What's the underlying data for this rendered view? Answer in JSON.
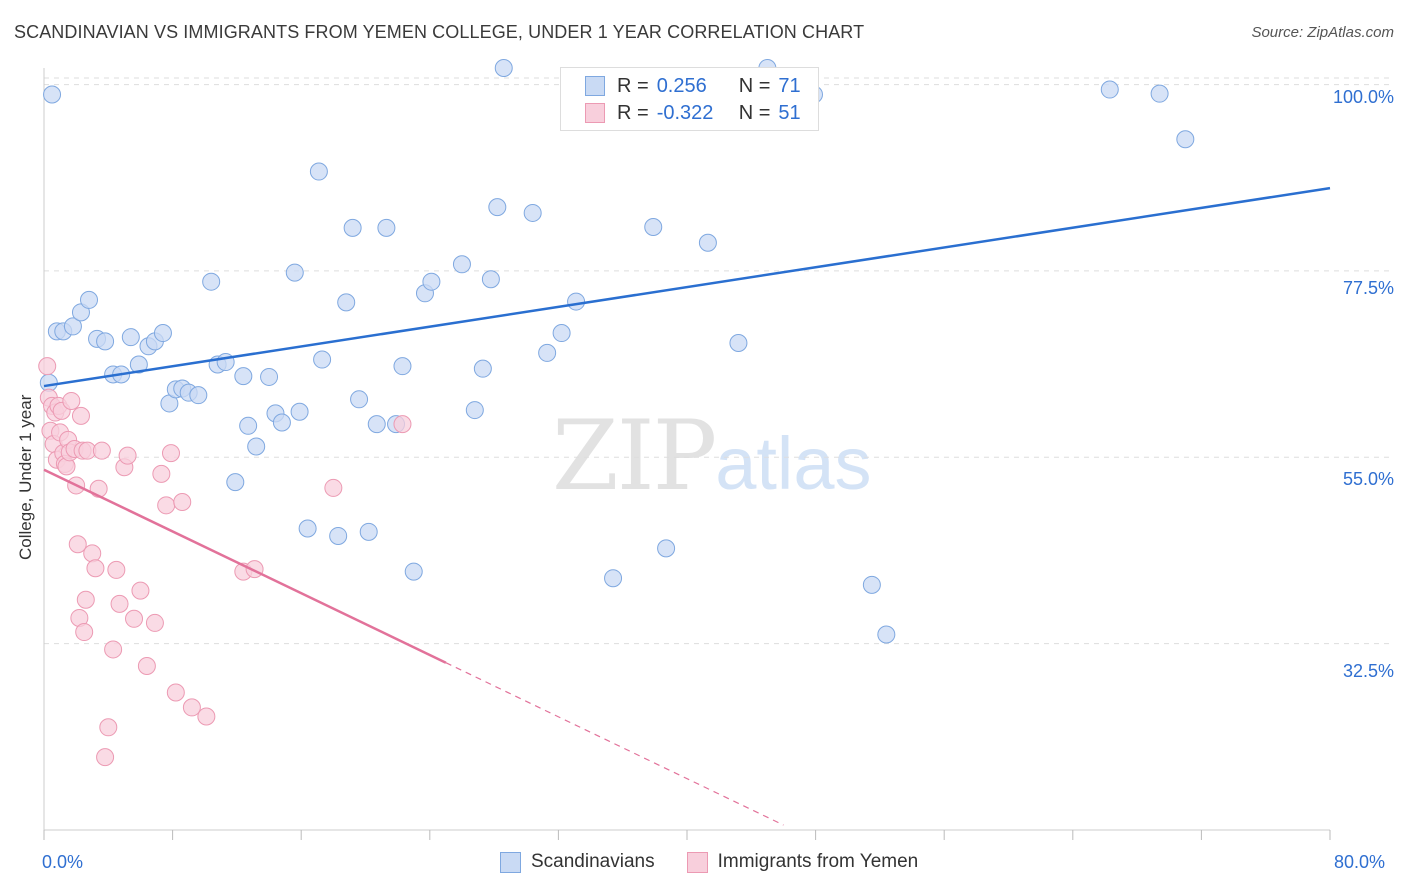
{
  "title": "SCANDINAVIAN VS IMMIGRANTS FROM YEMEN COLLEGE, UNDER 1 YEAR CORRELATION CHART",
  "source": "Source: ZipAtlas.com",
  "watermark": {
    "zip": "ZIP",
    "atlas": "atlas"
  },
  "legend_top": {
    "rows": [
      {
        "r_label": "R =",
        "r_value": "0.256",
        "n_label": "N =",
        "n_value": "71"
      },
      {
        "r_label": "R =",
        "r_value": "-0.322",
        "n_label": "N =",
        "n_value": "51"
      }
    ]
  },
  "colors": {
    "blue_fill": "#c9daf4",
    "blue_stroke": "#7fa8e0",
    "blue_line": "#2a6fd0",
    "pink_fill": "#f8cfdc",
    "pink_stroke": "#ec9ab3",
    "pink_line": "#e2729a",
    "grid": "#dddddd",
    "tick_text": "#2f6fd1"
  },
  "chart_data": {
    "type": "scatter",
    "title": "SCANDINAVIAN VS IMMIGRANTS FROM YEMEN COLLEGE, UNDER 1 YEAR CORRELATION CHART",
    "xlabel": "",
    "ylabel": "College, Under 1 year",
    "xlim": [
      0,
      80
    ],
    "ylim": [
      10,
      102
    ],
    "x_tick_labels": [
      "0.0%",
      "80.0%"
    ],
    "y_ticks": [
      32.5,
      55.0,
      77.5,
      100.0
    ],
    "y_tick_labels": [
      "32.5%",
      "55.0%",
      "77.5%",
      "100.0%"
    ],
    "grid": true,
    "legend": "bottom-center",
    "series": [
      {
        "name": "Scandinavians",
        "r": 0.256,
        "n": 71,
        "trend": {
          "x": [
            0,
            80
          ],
          "y": [
            63.6,
            87.5
          ]
        },
        "points": [
          [
            0.3,
            64
          ],
          [
            0.8,
            70.2
          ],
          [
            1.2,
            70.2
          ],
          [
            1.8,
            70.8
          ],
          [
            2.3,
            72.5
          ],
          [
            2.8,
            74
          ],
          [
            3.3,
            69.3
          ],
          [
            3.8,
            69
          ],
          [
            4.3,
            65
          ],
          [
            4.8,
            65
          ],
          [
            5.4,
            69.5
          ],
          [
            5.9,
            66.2
          ],
          [
            6.5,
            68.4
          ],
          [
            6.9,
            69
          ],
          [
            7.4,
            70
          ],
          [
            7.8,
            61.5
          ],
          [
            8.2,
            63.2
          ],
          [
            8.6,
            63.3
          ],
          [
            9.0,
            62.8
          ],
          [
            9.6,
            62.5
          ],
          [
            10.4,
            76.2
          ],
          [
            10.8,
            66.2
          ],
          [
            11.3,
            66.5
          ],
          [
            11.9,
            52
          ],
          [
            12.4,
            64.8
          ],
          [
            12.7,
            58.8
          ],
          [
            13.2,
            56.3
          ],
          [
            14.0,
            64.7
          ],
          [
            14.4,
            60.3
          ],
          [
            14.8,
            59.2
          ],
          [
            15.6,
            77.3
          ],
          [
            15.9,
            60.5
          ],
          [
            16.4,
            46.4
          ],
          [
            17.1,
            89.5
          ],
          [
            17.3,
            66.8
          ],
          [
            18.3,
            45.5
          ],
          [
            18.8,
            73.7
          ],
          [
            19.2,
            82.7
          ],
          [
            19.6,
            62
          ],
          [
            20.2,
            46
          ],
          [
            20.7,
            59
          ],
          [
            21.3,
            82.7
          ],
          [
            21.9,
            59
          ],
          [
            22.3,
            66
          ],
          [
            23.0,
            41.2
          ],
          [
            23.7,
            74.8
          ],
          [
            24.1,
            76.2
          ],
          [
            26.0,
            78.3
          ],
          [
            26.8,
            60.7
          ],
          [
            27.3,
            65.7
          ],
          [
            27.8,
            76.5
          ],
          [
            28.2,
            85.2
          ],
          [
            28.6,
            102
          ],
          [
            30.4,
            84.5
          ],
          [
            31.3,
            67.6
          ],
          [
            32.2,
            70
          ],
          [
            33.1,
            73.8
          ],
          [
            34.1,
            99.3
          ],
          [
            35.4,
            40.4
          ],
          [
            37.9,
            82.8
          ],
          [
            38.7,
            44
          ],
          [
            41.3,
            80.9
          ],
          [
            43.2,
            68.8
          ],
          [
            45.0,
            102
          ],
          [
            47.9,
            98.8
          ],
          [
            51.5,
            39.6
          ],
          [
            52.4,
            33.6
          ],
          [
            66.3,
            99.4
          ],
          [
            69.4,
            98.9
          ],
          [
            71.0,
            93.4
          ],
          [
            0.5,
            98.8
          ]
        ]
      },
      {
        "name": "Immigrants from Yemen",
        "r": -0.322,
        "n": 51,
        "trend": {
          "x": [
            0,
            25
          ],
          "y": [
            53.5,
            30.2
          ]
        },
        "trend_dashed": {
          "x": [
            25,
            46
          ],
          "y": [
            30.2,
            10.6
          ]
        },
        "points": [
          [
            0.2,
            66
          ],
          [
            0.3,
            62.2
          ],
          [
            0.4,
            58.2
          ],
          [
            0.5,
            61.2
          ],
          [
            0.6,
            56.6
          ],
          [
            0.7,
            60.4
          ],
          [
            0.8,
            54.7
          ],
          [
            0.9,
            61.2
          ],
          [
            1.0,
            58
          ],
          [
            1.1,
            60.6
          ],
          [
            1.2,
            55.5
          ],
          [
            1.3,
            54.2
          ],
          [
            1.4,
            53.9
          ],
          [
            1.5,
            57.1
          ],
          [
            1.6,
            55.6
          ],
          [
            1.7,
            61.8
          ],
          [
            1.9,
            56
          ],
          [
            2.0,
            51.6
          ],
          [
            2.1,
            44.5
          ],
          [
            2.2,
            35.6
          ],
          [
            2.3,
            60
          ],
          [
            2.4,
            55.8
          ],
          [
            2.5,
            33.9
          ],
          [
            2.6,
            37.8
          ],
          [
            2.7,
            55.8
          ],
          [
            3.0,
            43.4
          ],
          [
            3.2,
            41.6
          ],
          [
            3.4,
            51.2
          ],
          [
            3.6,
            55.8
          ],
          [
            3.8,
            18.8
          ],
          [
            4.0,
            22.4
          ],
          [
            4.3,
            31.8
          ],
          [
            4.5,
            41.4
          ],
          [
            4.7,
            37.3
          ],
          [
            5.0,
            53.8
          ],
          [
            5.2,
            55.2
          ],
          [
            5.6,
            35.5
          ],
          [
            6.0,
            38.9
          ],
          [
            6.4,
            29.8
          ],
          [
            6.9,
            35
          ],
          [
            7.3,
            53
          ],
          [
            7.6,
            49.2
          ],
          [
            7.9,
            55.5
          ],
          [
            8.2,
            26.6
          ],
          [
            8.6,
            49.6
          ],
          [
            9.2,
            24.8
          ],
          [
            10.1,
            23.7
          ],
          [
            12.4,
            41.2
          ],
          [
            13.1,
            41.5
          ],
          [
            18.0,
            51.3
          ],
          [
            22.3,
            59
          ]
        ]
      }
    ]
  },
  "legend_bottom": [
    "Scandinavians",
    "Immigrants from Yemen"
  ]
}
